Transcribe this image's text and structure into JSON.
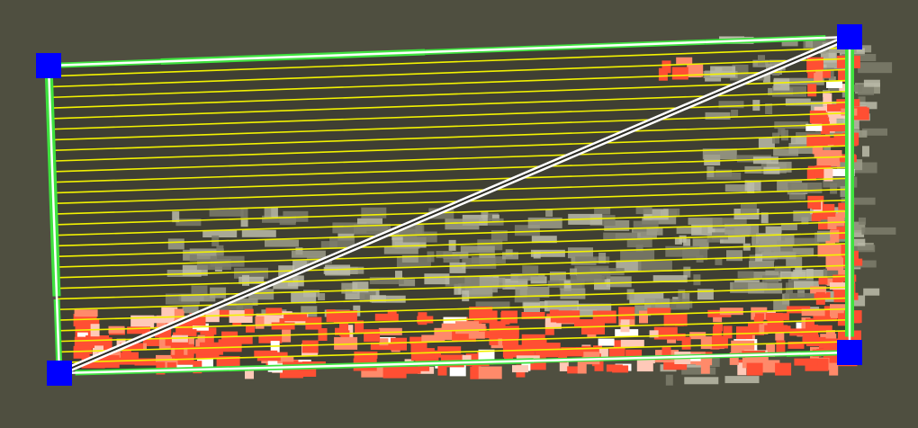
{
  "canvas": {
    "background_color": "#4f4f40",
    "quad_fill": "#3f3f33"
  },
  "overlay": {
    "grid_line_color": "#f2f200",
    "grid_line_count": 28,
    "outline_color": "#ffffff",
    "edge_highlight_color": "#3fe23f",
    "heat_colors": [
      "#ff4f33",
      "#ff8a6a",
      "#ffc9b8",
      "#ffffff"
    ],
    "noise_colors": [
      "#7d7d6c",
      "#9e9e8b",
      "#bcbcaa"
    ]
  },
  "handles": {
    "color": "#0000ff",
    "items": [
      {
        "name": "corner-handle-top-left"
      },
      {
        "name": "corner-handle-top-right"
      },
      {
        "name": "corner-handle-bottom-right"
      },
      {
        "name": "corner-handle-bottom-left"
      }
    ]
  }
}
